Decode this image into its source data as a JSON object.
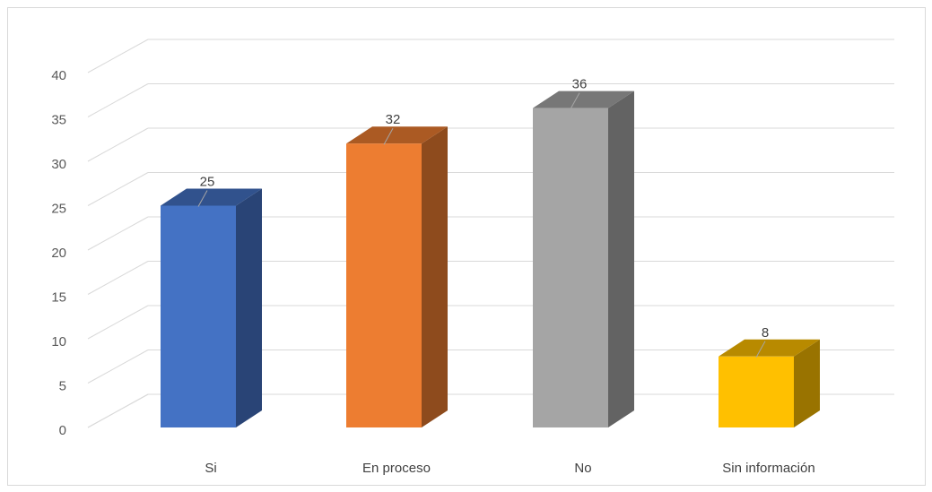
{
  "chart_data": {
    "type": "bar",
    "style": "3d-column",
    "categories": [
      "Si",
      "En proceso",
      "No",
      "Sin información"
    ],
    "values": [
      25,
      32,
      36,
      8
    ],
    "colors": [
      "#4472C4",
      "#ED7D31",
      "#A5A5A5",
      "#FFC000"
    ],
    "ylim": [
      0,
      40
    ],
    "yticks": [
      0,
      5,
      10,
      15,
      20,
      25,
      30,
      35,
      40
    ],
    "grid": true,
    "legend": "none",
    "title": "",
    "xlabel": "",
    "ylabel": ""
  }
}
